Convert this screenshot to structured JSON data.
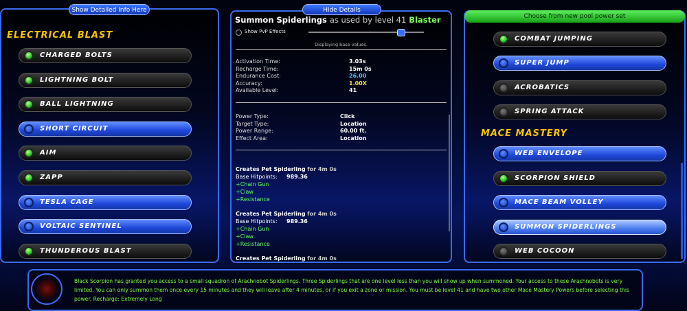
{
  "left_panel": {
    "tab": "Show Detailed Info Here",
    "heading": "Electrical Blast",
    "powers": [
      "Charged Bolts",
      "Lightning Bolt",
      "Ball Lightning",
      "Short Circuit",
      "Aim",
      "Zapp",
      "Tesla Cage",
      "Voltaic Sentinel",
      "Thunderous Blast"
    ]
  },
  "details": {
    "tab": "Hide Details",
    "title": {
      "name": "Summon Spiderlings",
      "used_by": "as used by level 41",
      "archetype": "Blaster"
    },
    "pvp_label": "Show PvP Effects",
    "note": "Displaying base values.",
    "stats": [
      [
        "Activation Time:",
        "3.03s"
      ],
      [
        "Recharge Time:",
        "15m 0s"
      ],
      [
        "Endurance Cost:",
        "26.00"
      ],
      [
        "Accuracy:",
        "1.00X"
      ],
      [
        "Available Level:",
        "41"
      ]
    ],
    "power_info": [
      [
        "Power Type:",
        "Click"
      ],
      [
        "Target Type:",
        "Location"
      ],
      [
        "Power Range:",
        "60.00 ft."
      ],
      [
        "Effect Area:",
        "Location"
      ]
    ],
    "effects": [
      {
        "creates": "Creates Pet Spiderling",
        "duration": "for 4m 0s",
        "hitpoints_label": "Base Hitpoints:",
        "hitpoints": "989.36",
        "abilities": [
          "+Chain Gun",
          "+Claw",
          "+Resistance"
        ]
      },
      {
        "creates": "Creates Pet Spiderling",
        "duration": "for 4m 0s",
        "hitpoints_label": "Base Hitpoints:",
        "hitpoints": "989.36",
        "abilities": [
          "+Chain Gun",
          "+Claw",
          "+Resistance"
        ]
      },
      {
        "creates": "Creates Pet Spiderling",
        "duration": "for 4m 0s"
      }
    ]
  },
  "right_panel": {
    "header": "Choose from new pool power set",
    "pool_powers": [
      "Combat Jumping",
      "Super Jump",
      "Acrobatics",
      "Spring Attack"
    ],
    "heading": "Mace Mastery",
    "mastery_powers": [
      "Web Envelope",
      "Scorpion Shield",
      "Mace Beam Volley",
      "Summon Spiderlings",
      "Web Cocoon"
    ]
  },
  "description": "Black Scorpion has granted you access to a small squadron of Arachnobot Spiderlings. Three Spiderlings that are one level less than you will show up when summoned. Your access to these Arachnobots is very limited. You can only summon them once every 15 minutes and they will leave after 4 minutes, or if you exit a zone or mission. You must be level 41 and have two other Mace Mastery Powers before selecting this power. Recharge: Extremely Long"
}
